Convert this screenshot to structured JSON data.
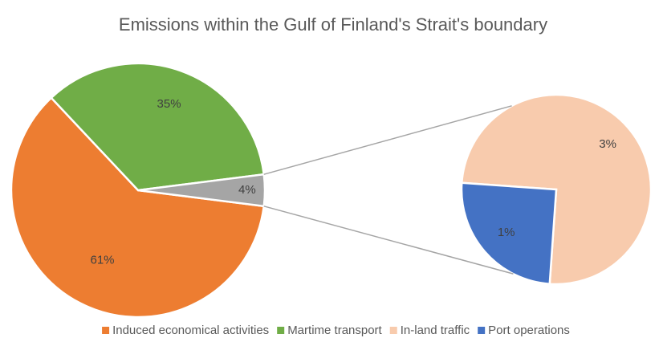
{
  "chart_data": {
    "type": "pie-of-pie",
    "title": "Emissions within the Gulf of Finland's Strait's boundary",
    "main": {
      "categories": [
        "Induced economical activities",
        "Martime transport",
        null
      ],
      "values": [
        61,
        35,
        4
      ],
      "value_labels": [
        "61%",
        "35%",
        "4%"
      ],
      "colors": [
        "#ed7d31",
        "#70ad47",
        "#a5a5a5"
      ]
    },
    "secondary": {
      "categories": [
        "In-land traffic",
        "Port operations"
      ],
      "values": [
        3,
        1
      ],
      "value_labels": [
        "3%",
        "1%"
      ],
      "colors": [
        "#f8cbad",
        "#4472c4"
      ]
    },
    "legend": "bottom"
  }
}
